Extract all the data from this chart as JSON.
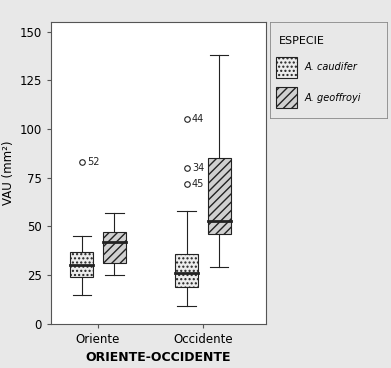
{
  "title": "",
  "xlabel": "ORIENTE-OCCIDENTE",
  "ylabel": "VAU (mm²)",
  "ylim": [
    0,
    155
  ],
  "yticks": [
    0,
    25,
    50,
    75,
    100,
    125,
    150
  ],
  "xtick_labels": [
    "Oriente",
    "Occidente"
  ],
  "groups": [
    "Oriente",
    "Occidente"
  ],
  "species": [
    "A. caudifer",
    "A. geoffroyi"
  ],
  "legend_title": "ESPECIE",
  "boxes": {
    "Oriente_caudifer": {
      "q1": 24,
      "median": 30,
      "q3": 37,
      "whislo": 15,
      "whishi": 45
    },
    "Oriente_geoffroyi": {
      "q1": 31,
      "median": 42,
      "q3": 47,
      "whislo": 25,
      "whishi": 57
    },
    "Occidente_caudifer": {
      "q1": 19,
      "median": 26,
      "q3": 36,
      "whislo": 9,
      "whishi": 58
    },
    "Occidente_geoffroyi": {
      "q1": 46,
      "median": 53,
      "q3": 85,
      "whislo": 29,
      "whishi": 138
    }
  },
  "outliers": {
    "Oriente_caudifer": [
      {
        "val": 83,
        "label": "52",
        "xoffset": 0.05
      }
    ],
    "Oriente_geoffroyi": [],
    "Occidente_caudifer": [
      {
        "val": 105,
        "label": "44",
        "xoffset": 0.05
      },
      {
        "val": 80,
        "label": "34",
        "xoffset": 0.05
      },
      {
        "val": 72,
        "label": "45",
        "xoffset": 0.05
      }
    ],
    "Occidente_geoffroyi": []
  },
  "box_width": 0.22,
  "group_positions": {
    "Oriente": 1.0,
    "Occidente": 2.0
  },
  "offsets": {
    "caudifer": -0.155,
    "geoffroyi": 0.155
  },
  "hatch_caudifer": "....",
  "hatch_geoffroyi": "////",
  "facecolor_caudifer": "#ececec",
  "facecolor_geoffroyi": "#d0d0d0",
  "linecolor": "#222222",
  "outlier_marker": "o",
  "outlier_ms": 4,
  "background_color": "#e8e8e8",
  "plot_bg": "#ffffff"
}
